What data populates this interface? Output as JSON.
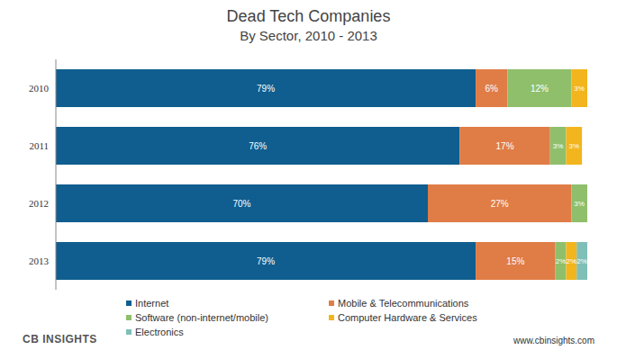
{
  "chart_data": {
    "type": "bar",
    "title": "Dead Tech Companies",
    "subtitle": "By Sector, 2010 - 2013",
    "orientation": "horizontal",
    "stacked": true,
    "data_labels": true,
    "tick_labels": "y",
    "legend": "bottom",
    "xlim": [
      0,
      100
    ],
    "categories": [
      "2010",
      "2011",
      "2012",
      "2013"
    ],
    "series": [
      {
        "name": "Internet",
        "color": "#105e8f",
        "values": [
          79,
          76,
          70,
          79
        ],
        "value_labels": [
          "79%",
          "76%",
          "70%",
          "79%"
        ]
      },
      {
        "name": "Mobile & Telecommunications",
        "color": "#e07c46",
        "values": [
          6,
          17,
          27,
          15
        ],
        "value_labels": [
          "6%",
          "17%",
          "27%",
          "15%"
        ]
      },
      {
        "name": "Software (non-internet/mobile)",
        "color": "#8fbf6b",
        "values": [
          12,
          3,
          3,
          2
        ],
        "value_labels": [
          "12%",
          "3%",
          "3%",
          "2%"
        ]
      },
      {
        "name": "Computer Hardware & Services",
        "color": "#f2b51d",
        "values": [
          3,
          3,
          null,
          2
        ],
        "value_labels": [
          "3%",
          "3%",
          null,
          "2%"
        ]
      },
      {
        "name": "Electronics",
        "color": "#7fbfb8",
        "values": [
          null,
          null,
          null,
          2
        ],
        "value_labels": [
          null,
          null,
          null,
          "2%"
        ]
      }
    ],
    "annotations": [
      "CB INSIGHTS",
      "www.cbinsights.com"
    ]
  }
}
